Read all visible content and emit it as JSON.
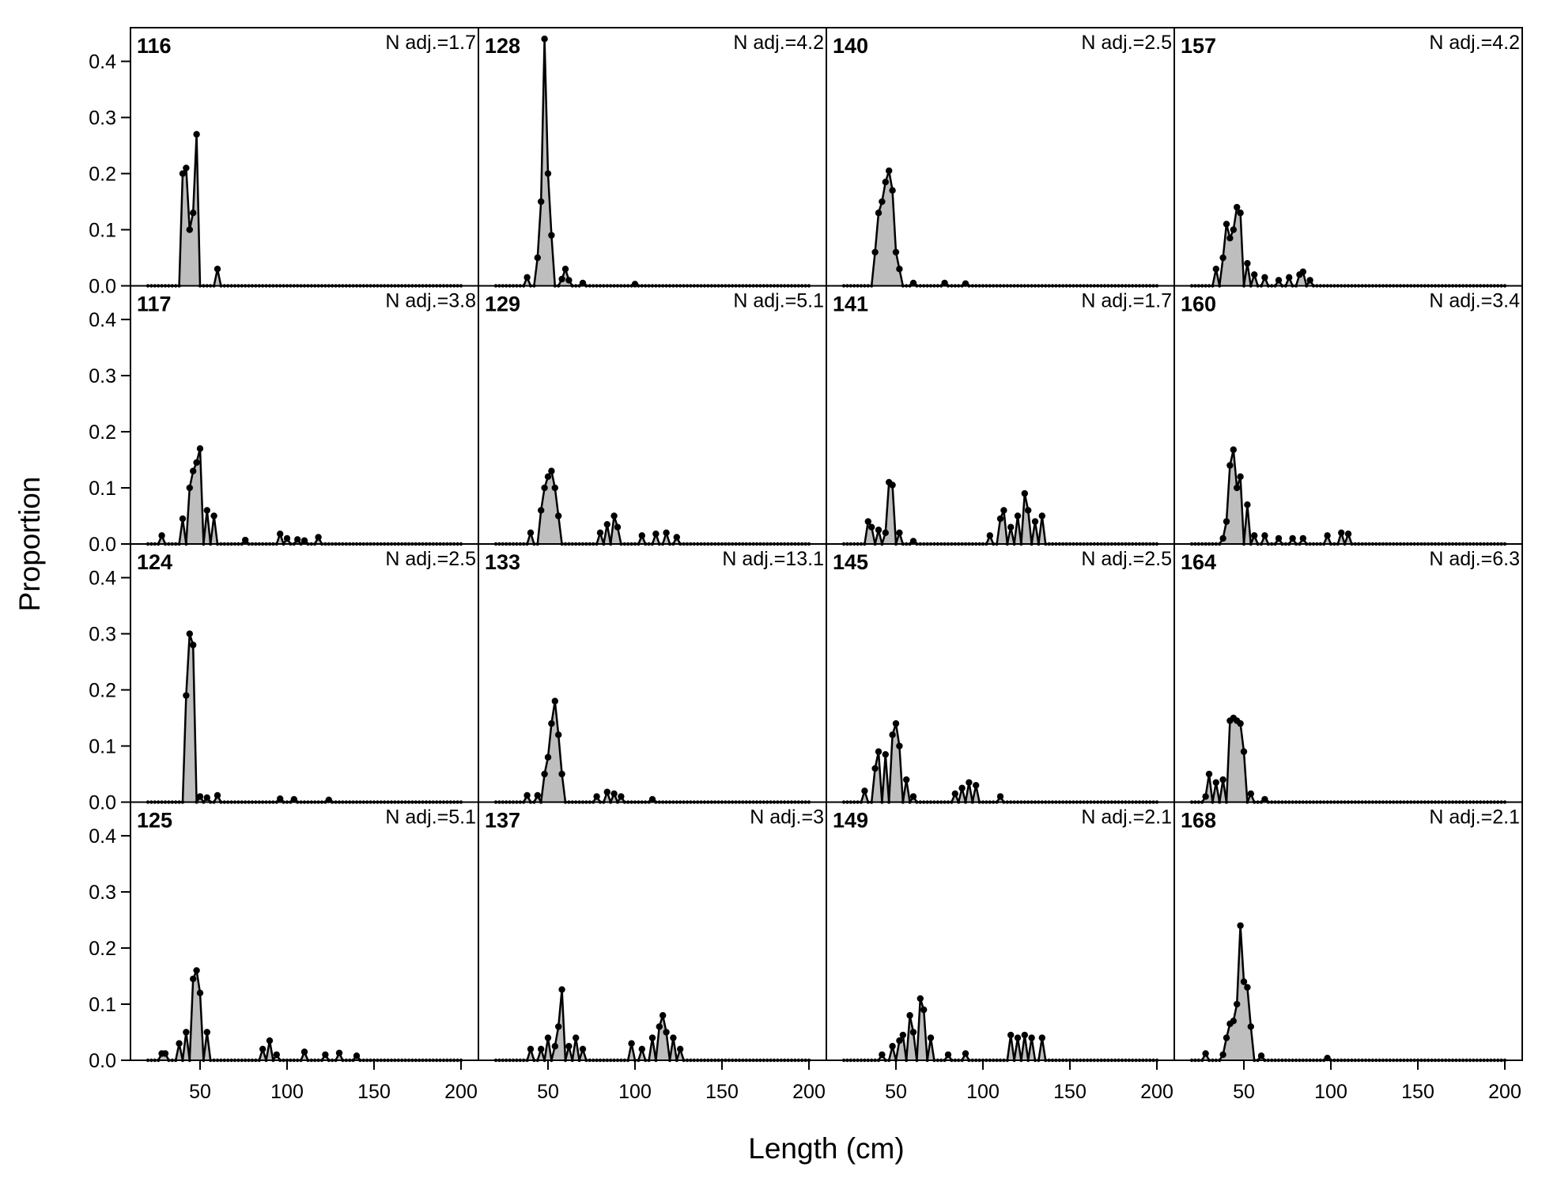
{
  "chart_data": {
    "type": "area",
    "xlabel": "Length (cm)",
    "ylabel": "Proportion",
    "xlim": [
      10,
      210
    ],
    "ylim": [
      0,
      0.46
    ],
    "x_ticks": [
      50,
      100,
      150,
      200
    ],
    "y_ticks": [
      0.0,
      0.1,
      0.2,
      0.3,
      0.4
    ],
    "x_tick_labels": [
      "50",
      "100",
      "150",
      "200"
    ],
    "y_tick_labels": [
      "0.0",
      "0.1",
      "0.2",
      "0.3",
      "0.4"
    ],
    "layout": {
      "rows": 4,
      "columns": 4,
      "order": "column-major"
    },
    "x_range_bins": [
      20,
      200
    ],
    "bin_width": 2,
    "marker": "filled-circle",
    "fill_color": "#bebebe",
    "line_color": "#000000",
    "panels": [
      {
        "id": "116",
        "n_adj": "N adj.=1.7",
        "peaks": [
          [
            40,
            0.2
          ],
          [
            42,
            0.21
          ],
          [
            44,
            0.1
          ],
          [
            46,
            0.13
          ],
          [
            48,
            0.27
          ],
          [
            60,
            0.03
          ]
        ]
      },
      {
        "id": "117",
        "n_adj": "N adj.=3.8",
        "peaks": [
          [
            28,
            0.015
          ],
          [
            40,
            0.045
          ],
          [
            44,
            0.1
          ],
          [
            46,
            0.13
          ],
          [
            48,
            0.145
          ],
          [
            50,
            0.17
          ],
          [
            54,
            0.06
          ],
          [
            58,
            0.05
          ],
          [
            76,
            0.007
          ],
          [
            96,
            0.018
          ],
          [
            100,
            0.01
          ],
          [
            106,
            0.008
          ],
          [
            110,
            0.006
          ],
          [
            118,
            0.012
          ]
        ]
      },
      {
        "id": "124",
        "n_adj": "N adj.=2.5",
        "peaks": [
          [
            42,
            0.19
          ],
          [
            44,
            0.3
          ],
          [
            46,
            0.28
          ],
          [
            50,
            0.01
          ],
          [
            54,
            0.008
          ],
          [
            60,
            0.012
          ],
          [
            96,
            0.006
          ],
          [
            104,
            0.005
          ],
          [
            124,
            0.004
          ]
        ]
      },
      {
        "id": "125",
        "n_adj": "N adj.=5.1",
        "peaks": [
          [
            28,
            0.012
          ],
          [
            30,
            0.012
          ],
          [
            38,
            0.03
          ],
          [
            42,
            0.05
          ],
          [
            46,
            0.145
          ],
          [
            48,
            0.16
          ],
          [
            50,
            0.12
          ],
          [
            54,
            0.05
          ],
          [
            86,
            0.02
          ],
          [
            90,
            0.035
          ],
          [
            94,
            0.01
          ],
          [
            110,
            0.015
          ],
          [
            122,
            0.01
          ],
          [
            130,
            0.013
          ],
          [
            140,
            0.008
          ]
        ]
      },
      {
        "id": "128",
        "n_adj": "N adj.=4.2",
        "peaks": [
          [
            38,
            0.015
          ],
          [
            44,
            0.05
          ],
          [
            46,
            0.15
          ],
          [
            48,
            0.44
          ],
          [
            50,
            0.2
          ],
          [
            52,
            0.09
          ],
          [
            58,
            0.012
          ],
          [
            60,
            0.03
          ],
          [
            62,
            0.01
          ],
          [
            70,
            0.005
          ],
          [
            100,
            0.003
          ]
        ]
      },
      {
        "id": "129",
        "n_adj": "N adj.=5.1",
        "peaks": [
          [
            40,
            0.02
          ],
          [
            46,
            0.06
          ],
          [
            48,
            0.1
          ],
          [
            50,
            0.12
          ],
          [
            52,
            0.13
          ],
          [
            54,
            0.1
          ],
          [
            56,
            0.05
          ],
          [
            80,
            0.02
          ],
          [
            84,
            0.035
          ],
          [
            88,
            0.05
          ],
          [
            90,
            0.03
          ],
          [
            104,
            0.015
          ],
          [
            112,
            0.018
          ],
          [
            118,
            0.02
          ],
          [
            124,
            0.012
          ]
        ]
      },
      {
        "id": "133",
        "n_adj": "N adj.=13.1",
        "peaks": [
          [
            38,
            0.012
          ],
          [
            44,
            0.012
          ],
          [
            48,
            0.05
          ],
          [
            50,
            0.08
          ],
          [
            52,
            0.14
          ],
          [
            54,
            0.18
          ],
          [
            56,
            0.12
          ],
          [
            58,
            0.05
          ],
          [
            78,
            0.01
          ],
          [
            84,
            0.018
          ],
          [
            88,
            0.015
          ],
          [
            92,
            0.01
          ],
          [
            110,
            0.005
          ]
        ]
      },
      {
        "id": "137",
        "n_adj": "N adj.=3",
        "peaks": [
          [
            40,
            0.02
          ],
          [
            46,
            0.02
          ],
          [
            50,
            0.04
          ],
          [
            54,
            0.025
          ],
          [
            56,
            0.06
          ],
          [
            58,
            0.126
          ],
          [
            62,
            0.025
          ],
          [
            66,
            0.04
          ],
          [
            70,
            0.02
          ],
          [
            98,
            0.03
          ],
          [
            104,
            0.02
          ],
          [
            110,
            0.04
          ],
          [
            114,
            0.06
          ],
          [
            116,
            0.08
          ],
          [
            118,
            0.05
          ],
          [
            122,
            0.04
          ],
          [
            126,
            0.02
          ]
        ]
      },
      {
        "id": "140",
        "n_adj": "N adj.=2.5",
        "peaks": [
          [
            38,
            0.06
          ],
          [
            40,
            0.13
          ],
          [
            42,
            0.15
          ],
          [
            44,
            0.185
          ],
          [
            46,
            0.205
          ],
          [
            48,
            0.17
          ],
          [
            50,
            0.06
          ],
          [
            52,
            0.03
          ],
          [
            60,
            0.005
          ],
          [
            78,
            0.005
          ],
          [
            90,
            0.004
          ]
        ]
      },
      {
        "id": "141",
        "n_adj": "N adj.=1.7",
        "peaks": [
          [
            34,
            0.04
          ],
          [
            36,
            0.03
          ],
          [
            40,
            0.025
          ],
          [
            44,
            0.02
          ],
          [
            46,
            0.11
          ],
          [
            48,
            0.105
          ],
          [
            52,
            0.02
          ],
          [
            60,
            0.005
          ],
          [
            104,
            0.015
          ],
          [
            110,
            0.045
          ],
          [
            112,
            0.06
          ],
          [
            116,
            0.03
          ],
          [
            120,
            0.05
          ],
          [
            124,
            0.09
          ],
          [
            126,
            0.06
          ],
          [
            130,
            0.04
          ],
          [
            134,
            0.05
          ]
        ]
      },
      {
        "id": "145",
        "n_adj": "N adj.=2.5",
        "peaks": [
          [
            32,
            0.02
          ],
          [
            38,
            0.06
          ],
          [
            40,
            0.09
          ],
          [
            44,
            0.085
          ],
          [
            48,
            0.12
          ],
          [
            50,
            0.14
          ],
          [
            52,
            0.1
          ],
          [
            56,
            0.04
          ],
          [
            60,
            0.01
          ],
          [
            84,
            0.015
          ],
          [
            88,
            0.025
          ],
          [
            92,
            0.035
          ],
          [
            96,
            0.03
          ],
          [
            110,
            0.01
          ]
        ]
      },
      {
        "id": "149",
        "n_adj": "N adj.=2.1",
        "peaks": [
          [
            42,
            0.01
          ],
          [
            48,
            0.025
          ],
          [
            52,
            0.035
          ],
          [
            54,
            0.045
          ],
          [
            58,
            0.08
          ],
          [
            60,
            0.05
          ],
          [
            64,
            0.11
          ],
          [
            66,
            0.09
          ],
          [
            70,
            0.04
          ],
          [
            80,
            0.01
          ],
          [
            90,
            0.012
          ],
          [
            116,
            0.045
          ],
          [
            120,
            0.04
          ],
          [
            124,
            0.045
          ],
          [
            128,
            0.04
          ],
          [
            134,
            0.04
          ]
        ]
      },
      {
        "id": "157",
        "n_adj": "N adj.=4.2",
        "peaks": [
          [
            34,
            0.03
          ],
          [
            38,
            0.05
          ],
          [
            40,
            0.11
          ],
          [
            42,
            0.085
          ],
          [
            44,
            0.1
          ],
          [
            46,
            0.14
          ],
          [
            48,
            0.13
          ],
          [
            52,
            0.04
          ],
          [
            56,
            0.02
          ],
          [
            62,
            0.015
          ],
          [
            70,
            0.01
          ],
          [
            76,
            0.015
          ],
          [
            82,
            0.02
          ],
          [
            84,
            0.025
          ],
          [
            88,
            0.01
          ]
        ]
      },
      {
        "id": "160",
        "n_adj": "N adj.=3.4",
        "peaks": [
          [
            38,
            0.01
          ],
          [
            40,
            0.04
          ],
          [
            42,
            0.14
          ],
          [
            44,
            0.168
          ],
          [
            46,
            0.1
          ],
          [
            48,
            0.12
          ],
          [
            52,
            0.07
          ],
          [
            56,
            0.015
          ],
          [
            62,
            0.015
          ],
          [
            70,
            0.01
          ],
          [
            78,
            0.01
          ],
          [
            84,
            0.01
          ],
          [
            98,
            0.015
          ],
          [
            106,
            0.02
          ],
          [
            110,
            0.018
          ]
        ]
      },
      {
        "id": "164",
        "n_adj": "N adj.=6.3",
        "peaks": [
          [
            28,
            0.01
          ],
          [
            30,
            0.05
          ],
          [
            34,
            0.035
          ],
          [
            38,
            0.04
          ],
          [
            42,
            0.145
          ],
          [
            44,
            0.15
          ],
          [
            46,
            0.145
          ],
          [
            48,
            0.14
          ],
          [
            50,
            0.09
          ],
          [
            54,
            0.015
          ],
          [
            62,
            0.005
          ]
        ]
      },
      {
        "id": "168",
        "n_adj": "N adj.=2.1",
        "peaks": [
          [
            28,
            0.012
          ],
          [
            38,
            0.01
          ],
          [
            40,
            0.04
          ],
          [
            42,
            0.065
          ],
          [
            44,
            0.07
          ],
          [
            46,
            0.1
          ],
          [
            48,
            0.24
          ],
          [
            50,
            0.14
          ],
          [
            52,
            0.13
          ],
          [
            54,
            0.06
          ],
          [
            60,
            0.008
          ],
          [
            98,
            0.004
          ]
        ]
      }
    ]
  }
}
